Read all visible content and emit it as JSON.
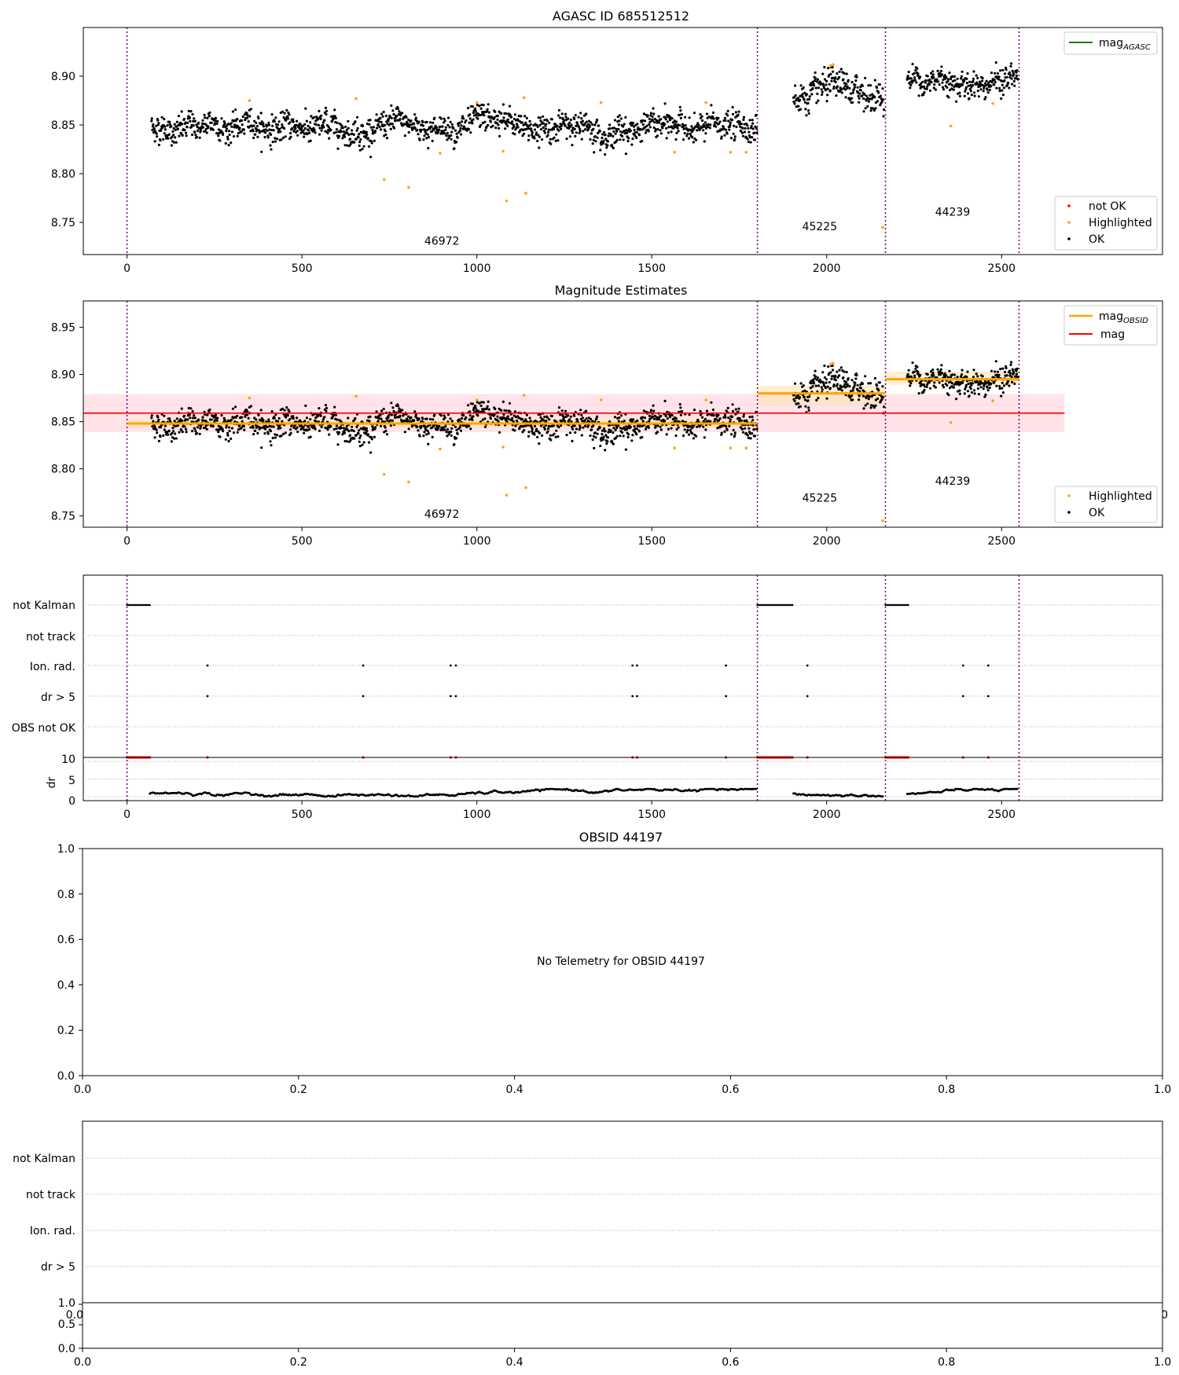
{
  "colors": {
    "ok": "#000000",
    "highlighted": "#ffa500",
    "not_ok": "#ff0000",
    "obsid_mark": "#800080",
    "mag_agasc": "#008000",
    "mag_obsid": "#ffa500",
    "mag": "#ff0000",
    "mag_band": "#ffc0cb",
    "obsid_band": "#ffe4b5",
    "grid": "#b0b0b0"
  },
  "chart_data": [
    {
      "type": "scatter",
      "title": "AGASC ID 685512512",
      "xlim": [
        -125,
        2960
      ],
      "ylim": [
        8.717,
        8.95
      ],
      "xticks": [
        "0",
        "500",
        "1000",
        "1500",
        "2000",
        "2500"
      ],
      "yticks": [
        "8.75",
        "8.80",
        "8.85",
        "8.90"
      ],
      "obsid_boundaries": [
        0,
        1802,
        2168,
        2550
      ],
      "obsid_labels": [
        {
          "text": "46972",
          "x": 900,
          "y": 8.727
        },
        {
          "text": "45225",
          "x": 1980,
          "y": 8.742
        },
        {
          "text": "44239",
          "x": 2360,
          "y": 8.757
        }
      ],
      "segments": [
        {
          "x0": 70,
          "x1": 1802,
          "mean": 8.848,
          "std": 0.009
        },
        {
          "x0": 1905,
          "x1": 2165,
          "mean": 8.88,
          "std": 0.011
        },
        {
          "x0": 2230,
          "x1": 2548,
          "mean": 8.897,
          "std": 0.009
        }
      ],
      "highlighted": [
        [
          350,
          8.875
        ],
        [
          655,
          8.877
        ],
        [
          735,
          8.794
        ],
        [
          805,
          8.786
        ],
        [
          895,
          8.821
        ],
        [
          1000,
          8.873
        ],
        [
          1075,
          8.823
        ],
        [
          1085,
          8.772
        ],
        [
          1135,
          8.878
        ],
        [
          1140,
          8.78
        ],
        [
          1355,
          8.873
        ],
        [
          1565,
          8.822
        ],
        [
          1655,
          8.873
        ],
        [
          1725,
          8.822
        ],
        [
          1770,
          8.822
        ],
        [
          2012,
          8.911
        ],
        [
          2018,
          8.912
        ],
        [
          2160,
          8.745
        ],
        [
          2355,
          8.849
        ],
        [
          2475,
          8.872
        ]
      ],
      "legend_lines": [
        {
          "label_main": "mag",
          "label_sub": "AGASC"
        }
      ],
      "legend_points": [
        "not OK",
        "Highlighted",
        "OK"
      ]
    },
    {
      "type": "scatter",
      "title": "Magnitude Estimates",
      "xlim": [
        -125,
        2960
      ],
      "ylim": [
        8.738,
        8.978
      ],
      "xticks": [
        "0",
        "500",
        "1000",
        "1500",
        "2000",
        "2500"
      ],
      "yticks": [
        "8.75",
        "8.80",
        "8.85",
        "8.90",
        "8.95"
      ],
      "obsid_boundaries": [
        0,
        1802,
        2168,
        2550
      ],
      "obsid_labels": [
        {
          "text": "46972",
          "x": 900,
          "y": 8.748
        },
        {
          "text": "45225",
          "x": 1980,
          "y": 8.765
        },
        {
          "text": "44239",
          "x": 2360,
          "y": 8.783
        }
      ],
      "mag": {
        "value": 8.859,
        "band": [
          8.839,
          8.879
        ],
        "xrange": [
          -125,
          2680
        ]
      },
      "obsid_mags": [
        {
          "x0": 0,
          "x1": 1802,
          "value": 8.848,
          "band": [
            8.843,
            8.853
          ]
        },
        {
          "x0": 1802,
          "x1": 2168,
          "value": 8.88,
          "band": [
            8.868,
            8.888
          ]
        },
        {
          "x0": 2168,
          "x1": 2550,
          "value": 8.895,
          "band": [
            8.889,
            8.903
          ]
        }
      ],
      "legend_lines": [
        {
          "label_main": "mag",
          "label_sub": "OBSID"
        },
        {
          "label_main": "mag",
          "label_sub": ""
        }
      ],
      "legend_points": [
        "Highlighted",
        "OK"
      ]
    },
    {
      "type": "scatter",
      "xlim": [
        -125,
        2960
      ],
      "flag_categories": [
        "not Kalman",
        "not track",
        "Ion. rad.",
        "dr > 5",
        "OBS not OK"
      ],
      "dr_yticks": [
        "0",
        "5",
        "10"
      ],
      "dr_ylabel": "dr",
      "xticks": [
        "0",
        "500",
        "1000",
        "1500",
        "2000",
        "2500"
      ],
      "obsid_boundaries": [
        0,
        1802,
        2168,
        2550
      ],
      "not_kalman_ranges": [
        [
          0,
          68
        ],
        [
          1802,
          1902
        ],
        [
          2168,
          2235
        ]
      ],
      "ion_rad_times": [
        230,
        675,
        925,
        940,
        1445,
        1458,
        1712,
        1945,
        2390,
        2462
      ],
      "dr_segments": [
        [
          65,
          1800
        ],
        [
          1905,
          2162
        ],
        [
          2230,
          2545
        ]
      ]
    },
    {
      "type": "scatter",
      "title": "OBSID 44197",
      "message": "No Telemetry for OBSID 44197",
      "xticks": [
        "0.0",
        "0.2",
        "0.4",
        "0.6",
        "0.8",
        "1.0"
      ],
      "yticks": [
        "0.0",
        "0.2",
        "0.4",
        "0.6",
        "0.8",
        "1.0"
      ]
    },
    {
      "type": "scatter",
      "flag_categories": [
        "not Kalman",
        "not track",
        "Ion. rad.",
        "dr > 5"
      ],
      "dr_yticks": [
        "0.0",
        "0.5",
        "1.0"
      ],
      "xticks": [
        "0.0",
        "0.2",
        "0.4",
        "0.6",
        "0.8",
        "1.0"
      ],
      "hidden_xtick_left": "0.0",
      "hidden_xtick_right": "1.0"
    }
  ]
}
